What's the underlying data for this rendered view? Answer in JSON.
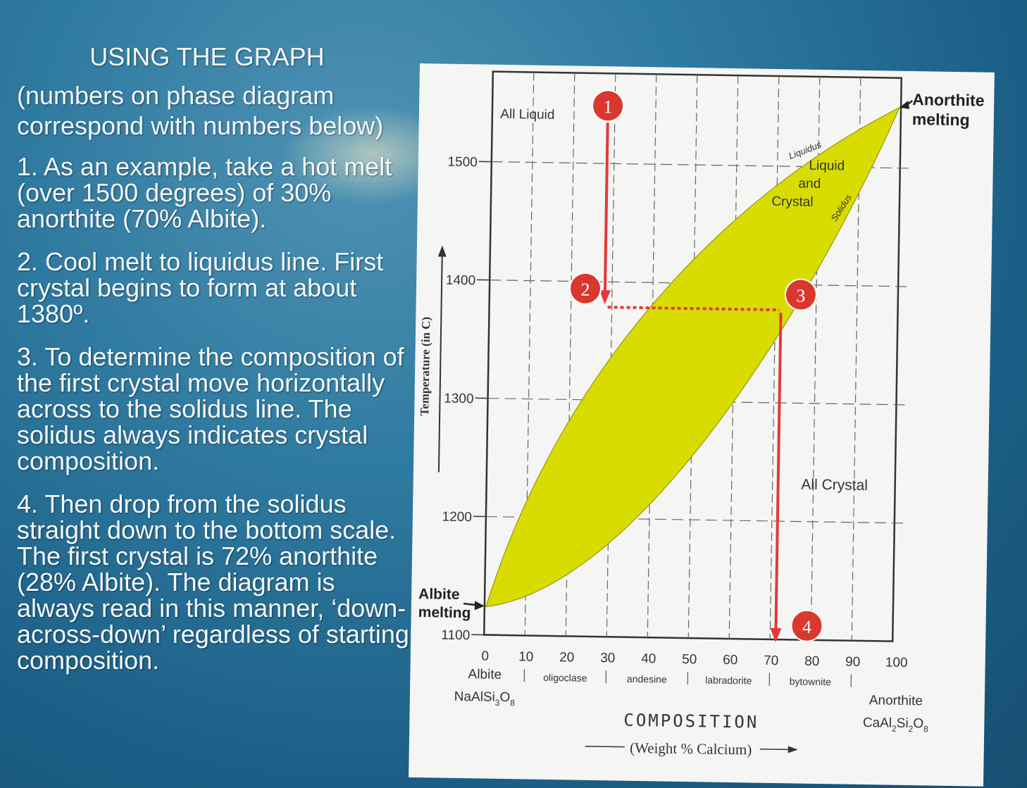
{
  "slide": {
    "title": "USING THE GRAPH",
    "intro": "(numbers on phase diagram correspond with numbers below)",
    "steps": [
      "1. As an example, take a hot melt (over 1500 degrees) of 30% anorthite (70% Albite).",
      "2. Cool melt to liquidus line. First crystal begins to form at about 1380º.",
      "3. To determine the composition of the first crystal move horizontally across to the solidus line. The solidus always indicates crystal composition.",
      "4. Then drop from the solidus straight down to the bottom scale. The first crystal is 72% anorthite (28% Albite). The diagram is always read in this manner, ‘down-across-down’ regardless of starting composition."
    ]
  },
  "diagram": {
    "y_axis_label": "Temperature (in C)",
    "y_ticks": [
      "1500",
      "1400",
      "1300",
      "1200",
      "1100"
    ],
    "x_ticks": [
      "0",
      "10",
      "20",
      "30",
      "40",
      "50",
      "60",
      "70",
      "80",
      "90",
      "100"
    ],
    "minerals": [
      "oligoclase",
      "andesine",
      "labradorite",
      "bytownite"
    ],
    "left_end": {
      "name": "Albite",
      "formula": "NaAlSi",
      "formula_sub": "3",
      "formula_end": "O",
      "formula_sub2": "8"
    },
    "right_end": {
      "name": "Anorthite",
      "formula": "CaAl",
      "formula_sub": "2",
      "formula_mid": "Si",
      "formula_sub2": "2",
      "formula_end": "O",
      "formula_sub3": "8"
    },
    "x_axis_title": "COMPOSITION",
    "x_axis_subtitle": "(Weight % Calcium)",
    "regions": {
      "all_liquid": "All Liquid",
      "liquid_line1": "Liquid",
      "liquid_line2": "and",
      "liquid_line3": "Crystal",
      "all_crystal": "All Crystal"
    },
    "curve_labels": {
      "liquidus": "Liquidus",
      "solidus": "Solidus"
    },
    "albite_melting_1": "Albite",
    "albite_melting_2": "melting",
    "anorthite_melting_1": "Anorthite",
    "anorthite_melting_2": "melting",
    "markers": [
      "1",
      "2",
      "3",
      "4"
    ],
    "colors": {
      "two_phase_region": "#d8dc00",
      "arrows": "#e23a3a",
      "marker_fill": "#d9382e"
    }
  }
}
